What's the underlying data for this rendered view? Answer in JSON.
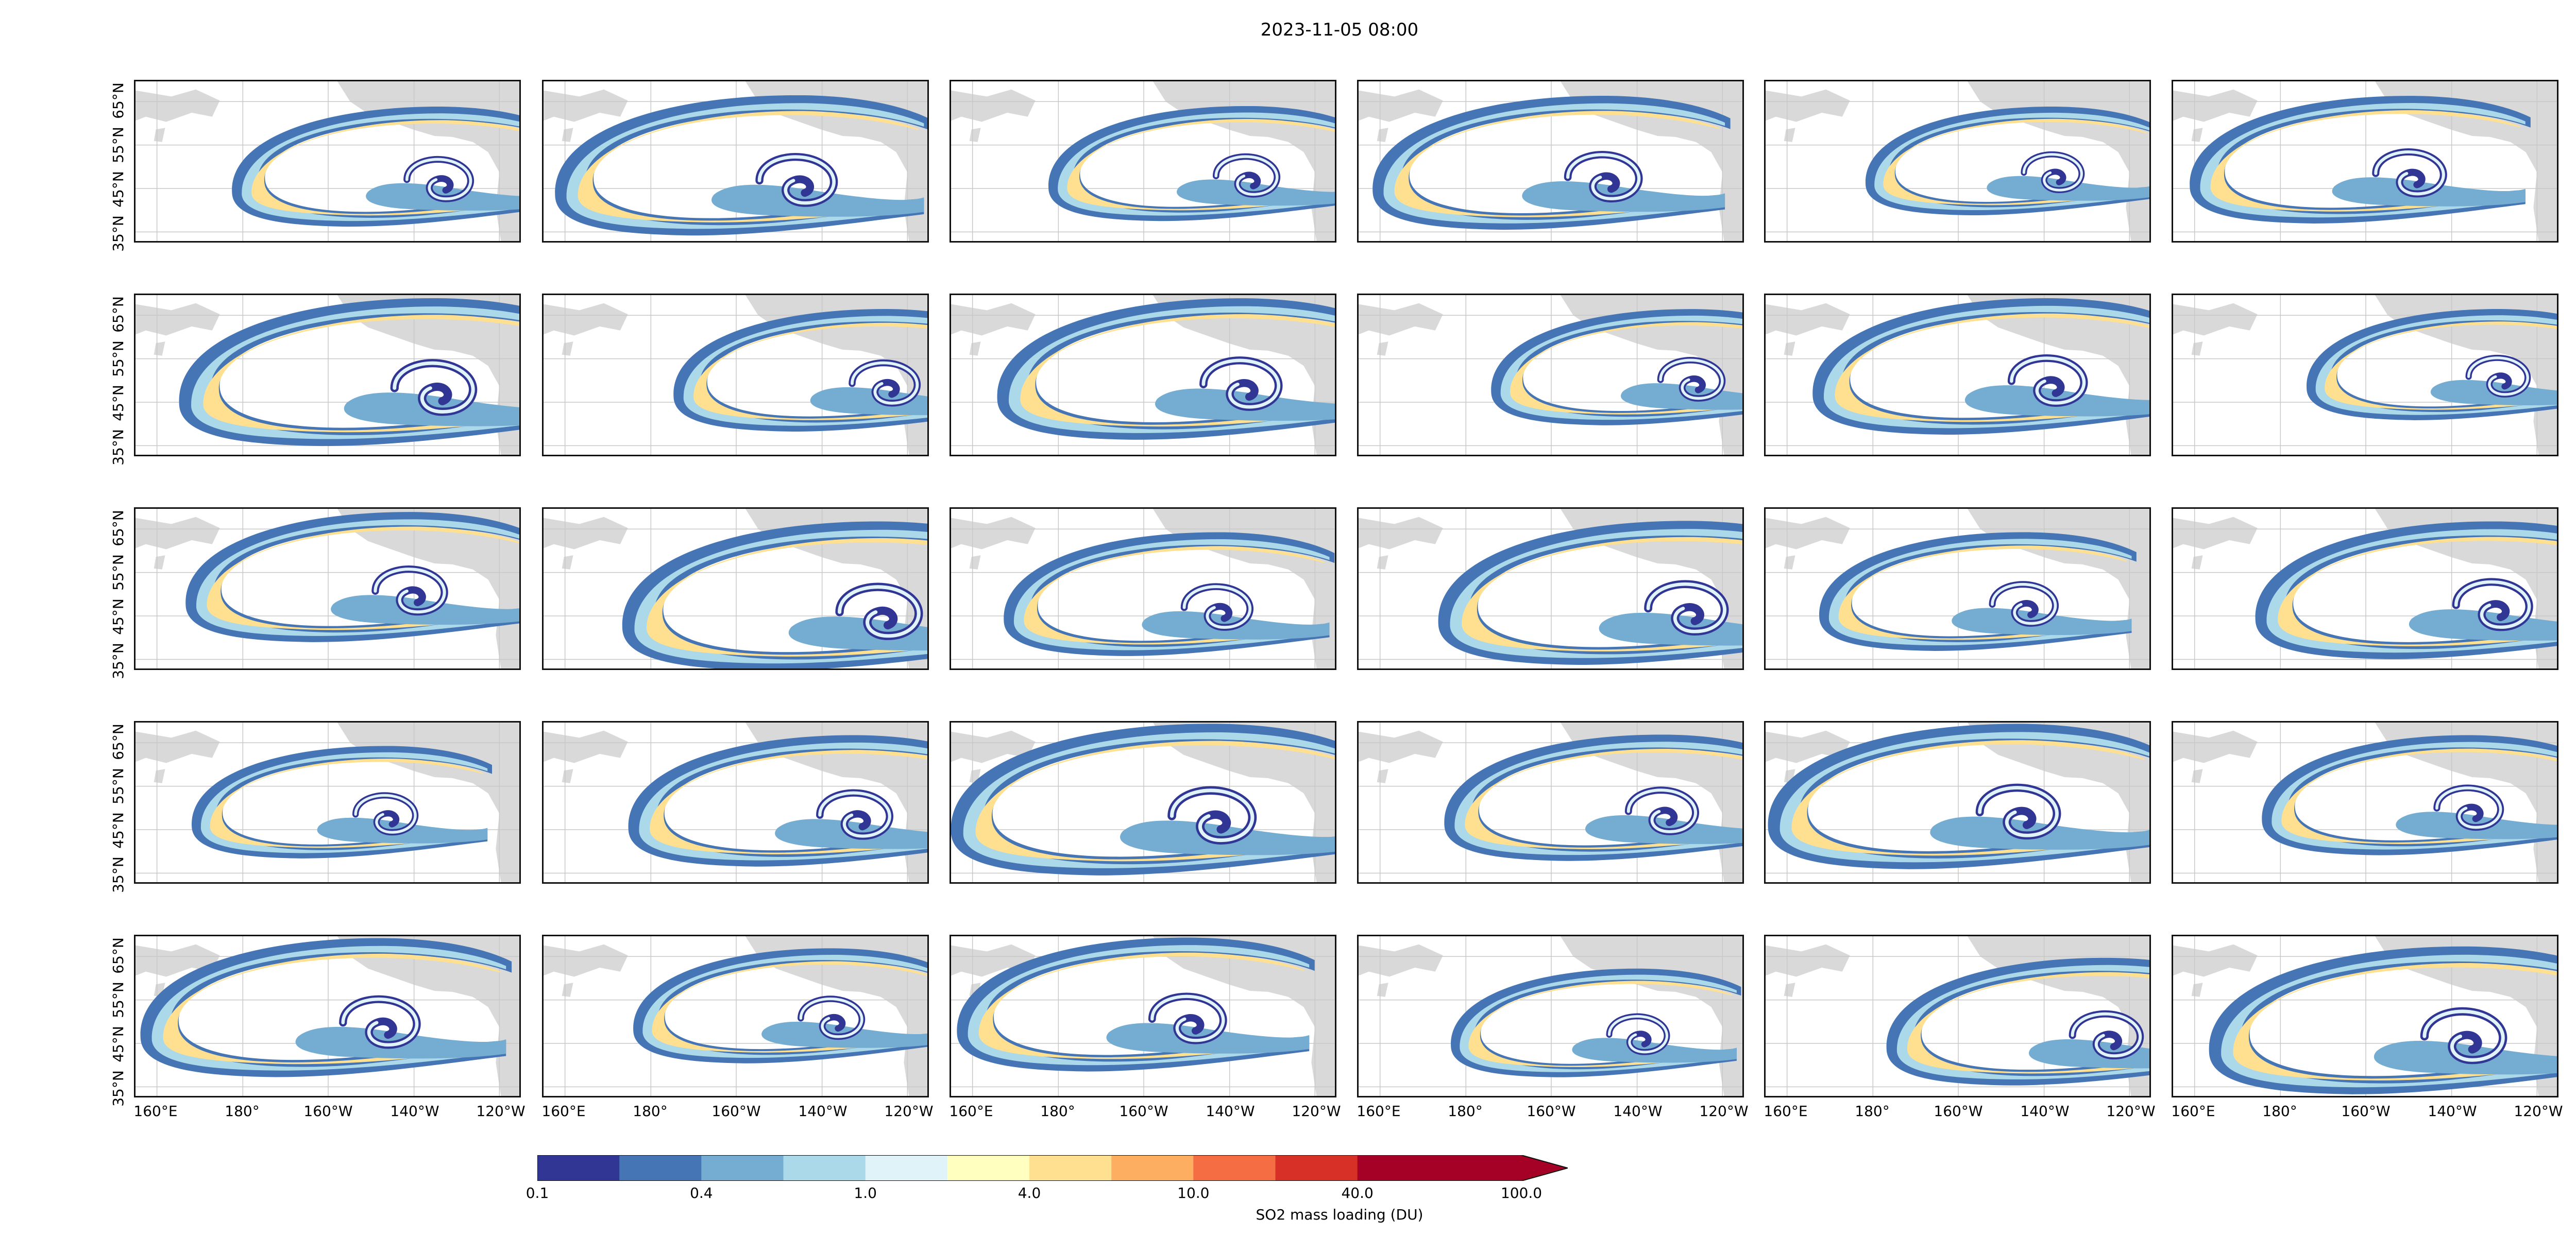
{
  "figure": {
    "title": "2023-11-05 08:00",
    "rows": 5,
    "cols": 6
  },
  "map": {
    "ytick_labels": [
      "35°N",
      "45°N",
      "55°N",
      "65°N"
    ],
    "xtick_labels": [
      "160°E",
      "180°",
      "160°W",
      "140°W",
      "120°W"
    ],
    "land_color": "#d9d9d9",
    "ocean_color": "#ffffff",
    "grid": true
  },
  "colorbar": {
    "label": "SO2 mass loading (DU)",
    "tick_labels": [
      "0.1",
      "0.4",
      "1.0",
      "4.0",
      "10.0",
      "40.0",
      "100.0"
    ],
    "extend": "max",
    "colors": [
      "#313695",
      "#4575b4",
      "#74add1",
      "#abd9e9",
      "#e0f3f8",
      "#ffffbf",
      "#fee090",
      "#fdae61",
      "#f46d43",
      "#d73027",
      "#a50026",
      "#a50026"
    ]
  },
  "chart_data": {
    "type": "heatmap",
    "title": "2023-11-05 08:00",
    "description_units": "SO2 mass loading (DU)",
    "panels": 30,
    "lon_range": [
      "160°E",
      "120°W"
    ],
    "lat_range": [
      "35°N",
      "65°N"
    ],
    "colorscale_ticks": [
      0.1,
      0.4,
      1.0,
      4.0,
      10.0,
      40.0,
      100.0
    ]
  }
}
